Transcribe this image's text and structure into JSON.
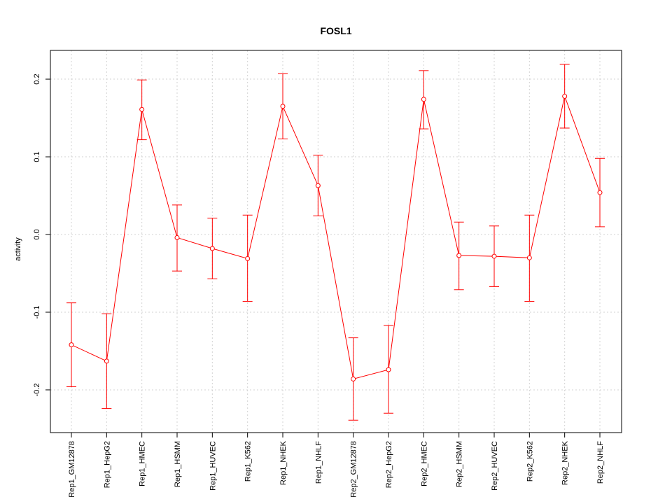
{
  "chart_data": {
    "type": "line",
    "title": "FOSL1",
    "xlabel": "",
    "ylabel": "activity",
    "ylim": [
      -0.255,
      0.237
    ],
    "yticks": [
      -0.2,
      -0.1,
      0.0,
      0.1,
      0.2
    ],
    "ytick_labels": [
      "-0.2",
      "-0.1",
      "0.0",
      "0.1",
      "0.2"
    ],
    "grid": true,
    "colors": {
      "series": "#ff0000",
      "grid": "#d3d3d3",
      "axis": "#000000"
    },
    "categories": [
      "Rep1_GM12878",
      "Rep1_HepG2",
      "Rep1_HMEC",
      "Rep1_HSMM",
      "Rep1_HUVEC",
      "Rep1_K562",
      "Rep1_NHEK",
      "Rep1_NHLF",
      "Rep2_GM12878",
      "Rep2_HepG2",
      "Rep2_HMEC",
      "Rep2_HSMM",
      "Rep2_HUVEC",
      "Rep2_K562",
      "Rep2_NHEK",
      "Rep2_NHLF"
    ],
    "series": [
      {
        "values": [
          -0.142,
          -0.163,
          0.161,
          -0.004,
          -0.018,
          -0.031,
          0.165,
          0.063,
          -0.186,
          -0.174,
          0.174,
          -0.027,
          -0.028,
          -0.03,
          0.178,
          0.054
        ],
        "upper": [
          -0.088,
          -0.102,
          0.199,
          0.038,
          0.021,
          0.025,
          0.207,
          0.102,
          -0.133,
          -0.117,
          0.211,
          0.016,
          0.011,
          0.025,
          0.219,
          0.098
        ],
        "lower": [
          -0.196,
          -0.224,
          0.122,
          -0.047,
          -0.057,
          -0.086,
          0.123,
          0.024,
          -0.239,
          -0.23,
          0.136,
          -0.071,
          -0.067,
          -0.086,
          0.137,
          0.01
        ]
      }
    ]
  }
}
